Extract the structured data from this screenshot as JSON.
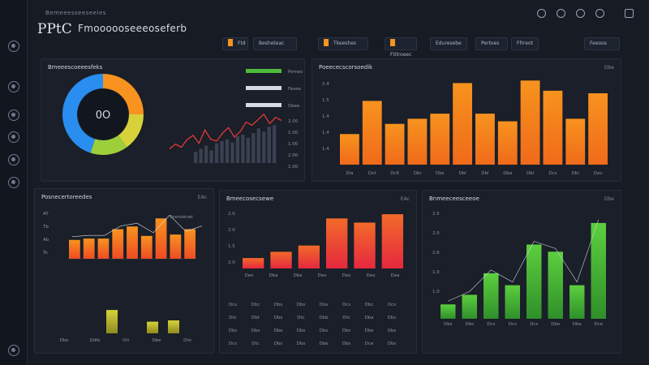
{
  "header": {
    "crumb": "Bemeeesseeseeies",
    "logo": "PPtC",
    "title": "Fmoooooseeeoseferb"
  },
  "top_icons": [
    "bell-icon",
    "refresh-icon",
    "settings-icon",
    "gear-icon",
    "user-icon"
  ],
  "sidebar_icons": [
    "dashboard-icon",
    "chart-icon",
    "analytics-icon",
    "reports-icon",
    "settings-icon",
    "target-icon",
    "help-icon"
  ],
  "tabs": [
    {
      "label": "Ftd",
      "swatch": "#f7931e"
    },
    {
      "label": "Besheteac",
      "swatch": ""
    },
    {
      "label": "Tkeeshes",
      "swatch": "#f7931e"
    },
    {
      "label": "Ftitroeec",
      "swatch": "#f7931e"
    },
    {
      "label": "Eduresebe",
      "swatch": ""
    },
    {
      "label": "Pertoes",
      "swatch": ""
    },
    {
      "label": "Ffrreot",
      "swatch": ""
    },
    {
      "label": "Feeoos",
      "swatch": ""
    }
  ],
  "colors": {
    "orange": "#f7931e",
    "red": "#ef3b36",
    "green": "#4cbb3a",
    "yellow": "#d7d23a",
    "blue": "#2a8df0",
    "background": "#161b24",
    "panel": "#1a1f29"
  },
  "panels": {
    "overview": {
      "title": "Bmeeescoeeesfeks",
      "donut_center": "0O",
      "legend": [
        "Pemes",
        "Fesee",
        "Dbee"
      ],
      "ticks": [
        "2.00",
        "1.00",
        "1.00",
        "2.00",
        "1.00"
      ]
    },
    "top_bars": {
      "title": "Poeececscorsoedik",
      "meta": "Dbe",
      "y_ticks": [
        "1.4",
        "1.4",
        "1.4",
        "1.5",
        "2.4"
      ],
      "x_labels": [
        "Dia",
        "Dot",
        "Dc6",
        "Dbi",
        "Dbs",
        "Dbl",
        "Dbl",
        "Dba",
        "Dbl",
        "Dcs",
        "Dbi",
        "Dav"
      ]
    },
    "bottom_left": {
      "title": "Posnecertoreedes",
      "meta": "EAc",
      "annotation": "Dcerolerset",
      "y_ticks": [
        "AT",
        "Tb",
        "Ab",
        "To"
      ],
      "x_labels": [
        "Dbe",
        "Ddfe",
        "Oti",
        "Dbe",
        "Dto"
      ]
    },
    "bottom_mid": {
      "title": "Bmeecosecsewe",
      "meta": "EAc",
      "y_ticks": [
        "2.0",
        "2.0",
        "1.5",
        "2.0"
      ],
      "x_labels": [
        "Deo",
        "Dba",
        "Dbe",
        "Deo",
        "Deo",
        "Deo",
        "Daa"
      ],
      "table_rows": [
        [
          "Dcs",
          "Dbc",
          "Dbs",
          "Dbs",
          "Dbs",
          "Dcs",
          "Dbc",
          "Dcs"
        ],
        [
          "Dtc",
          "Dbt",
          "Dbs",
          "Dtc",
          "Dbb",
          "Dtc",
          "Dba",
          "Dbc"
        ],
        [
          "Dbs",
          "Dbs",
          "Dbe",
          "Dbs",
          "Dbs",
          "Dbs",
          "Dbe",
          "Dbs"
        ],
        [
          "Dcs",
          "Dtc",
          "Dbs",
          "Dbs",
          "Dbe",
          "Dbs",
          "Dce",
          "Dbs"
        ]
      ]
    },
    "bottom_right": {
      "title": "Bnmeeceesceeoe",
      "meta": "Dbe",
      "y_ticks": [
        "2.5",
        "2.0",
        "2.6",
        "1.0",
        "1.0"
      ],
      "x_labels": [
        "Dbs",
        "Dbs",
        "Dcs",
        "Dcs",
        "Dcs",
        "Dbe",
        "Dbe",
        "Dce"
      ]
    }
  },
  "chart_data": [
    {
      "type": "pie",
      "slices": [
        {
          "name": "",
          "value": 25,
          "color": "#f7931e"
        },
        {
          "name": "",
          "value": 15,
          "color": "#d7d23a"
        },
        {
          "name": "",
          "value": 15,
          "color": "#9ccf3a"
        },
        {
          "name": "",
          "value": 45,
          "color": "#2a8df0"
        }
      ]
    },
    {
      "type": "line",
      "x": [
        1,
        2,
        3,
        4,
        5,
        6,
        7,
        8,
        9,
        10,
        11,
        12,
        13,
        14,
        15,
        16,
        17,
        18,
        19,
        20
      ],
      "series": [
        {
          "name": "",
          "values": [
            18,
            24,
            20,
            30,
            35,
            25,
            42,
            30,
            28,
            38,
            45,
            33,
            40,
            52,
            48,
            55,
            62,
            50,
            58,
            54
          ],
          "color": "#ef3b36"
        }
      ],
      "bars": [
        14,
        18,
        22,
        16,
        25,
        28,
        30,
        26,
        34,
        36,
        32,
        38,
        44,
        40,
        46,
        48
      ]
    },
    {
      "type": "bar",
      "categories": [
        "Dia",
        "Dot",
        "Dc6",
        "Dbi",
        "Dbs",
        "Dbl",
        "Dbl",
        "Dba",
        "Dbl",
        "Dcs",
        "Dbi",
        "Dav"
      ],
      "values": [
        1.2,
        2.5,
        1.6,
        1.8,
        2.0,
        3.2,
        2.0,
        1.7,
        3.3,
        2.9,
        1.8,
        2.8
      ],
      "ylim": [
        0,
        3.5
      ]
    },
    {
      "type": "bar",
      "categories": [
        "1",
        "2",
        "3",
        "4",
        "5",
        "6",
        "7",
        "8",
        "9"
      ],
      "values": [
        1.4,
        1.5,
        1.5,
        2.2,
        2.4,
        1.7,
        3.0,
        1.8,
        2.2
      ],
      "ylim": [
        0,
        3.5
      ],
      "lower_values": [
        1.8,
        0.9,
        1.0
      ]
    },
    {
      "type": "bar",
      "categories": [
        "1",
        "2",
        "3",
        "4",
        "5",
        "6"
      ],
      "values": [
        0.5,
        0.8,
        1.1,
        2.4,
        2.2,
        2.6
      ],
      "ylim": [
        0,
        2.8
      ]
    },
    {
      "type": "bar",
      "categories": [
        "1",
        "2",
        "3",
        "4",
        "5",
        "6",
        "7",
        "8"
      ],
      "values": [
        0.6,
        1.0,
        1.9,
        1.4,
        3.1,
        2.8,
        1.4,
        4.0
      ],
      "ylim": [
        0,
        4.2
      ]
    }
  ]
}
